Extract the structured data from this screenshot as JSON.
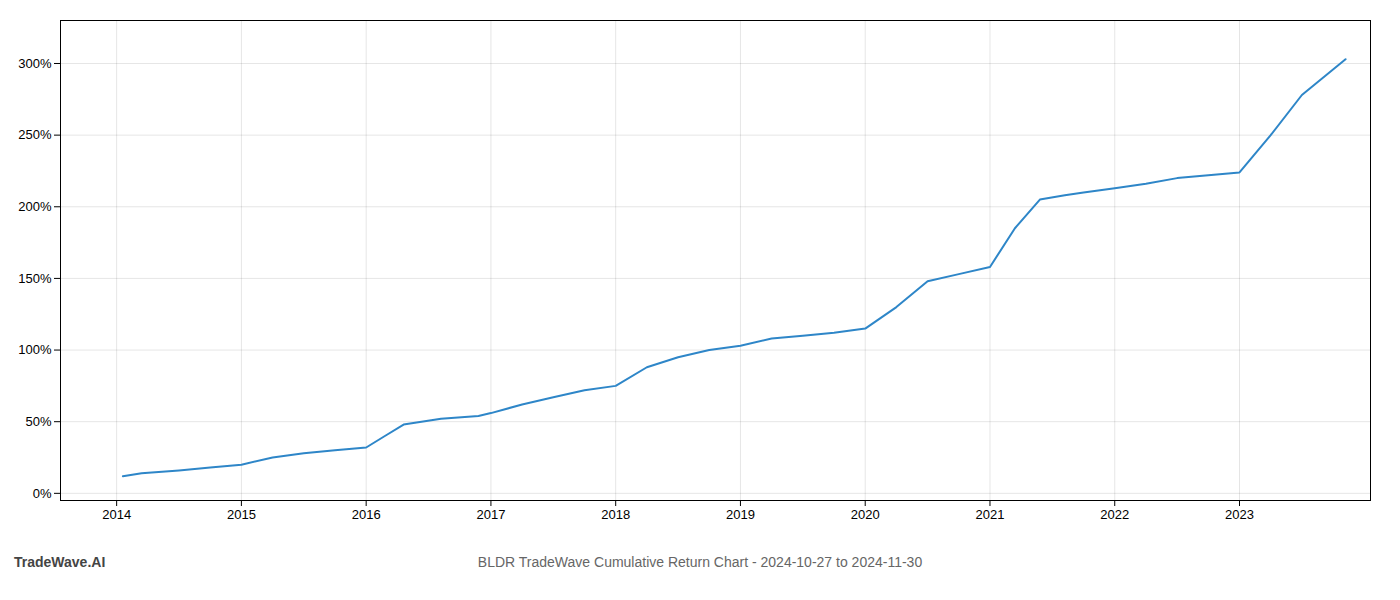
{
  "chart_data": {
    "type": "line",
    "title": "BLDR TradeWave Cumulative Return Chart - 2024-10-27 to 2024-11-30",
    "annotations": [
      "TradeWave.AI"
    ],
    "x": [
      2014.05,
      2014.2,
      2014.5,
      2014.75,
      2015.0,
      2015.25,
      2015.5,
      2015.75,
      2016.0,
      2016.15,
      2016.3,
      2016.6,
      2016.9,
      2017.0,
      2017.25,
      2017.5,
      2017.75,
      2018.0,
      2018.25,
      2018.5,
      2018.75,
      2019.0,
      2019.25,
      2019.5,
      2019.75,
      2020.0,
      2020.25,
      2020.5,
      2020.75,
      2021.0,
      2021.2,
      2021.4,
      2021.6,
      2021.75,
      2022.0,
      2022.25,
      2022.5,
      2022.75,
      2023.0,
      2023.25,
      2023.5,
      2023.85
    ],
    "values": [
      12,
      14,
      16,
      18,
      20,
      25,
      28,
      30,
      32,
      40,
      48,
      52,
      54,
      56,
      62,
      67,
      72,
      75,
      88,
      95,
      100,
      103,
      108,
      110,
      112,
      115,
      130,
      148,
      153,
      158,
      185,
      205,
      208,
      210,
      213,
      216,
      220,
      222,
      224,
      250,
      278,
      303
    ],
    "color": "#2e86c8",
    "xlim": [
      2013.55,
      2024.05
    ],
    "xticks": [
      2014,
      2015,
      2016,
      2017,
      2018,
      2019,
      2020,
      2021,
      2022,
      2023
    ],
    "ylim": [
      -5,
      330
    ],
    "yticks": [
      {
        "value": 0,
        "label": "0%"
      },
      {
        "value": 50,
        "label": "50%"
      },
      {
        "value": 100,
        "label": "100%"
      },
      {
        "value": 150,
        "label": "150%"
      },
      {
        "value": 200,
        "label": "200%"
      },
      {
        "value": 250,
        "label": "250%"
      },
      {
        "value": 300,
        "label": "300%"
      }
    ],
    "grid": true
  }
}
